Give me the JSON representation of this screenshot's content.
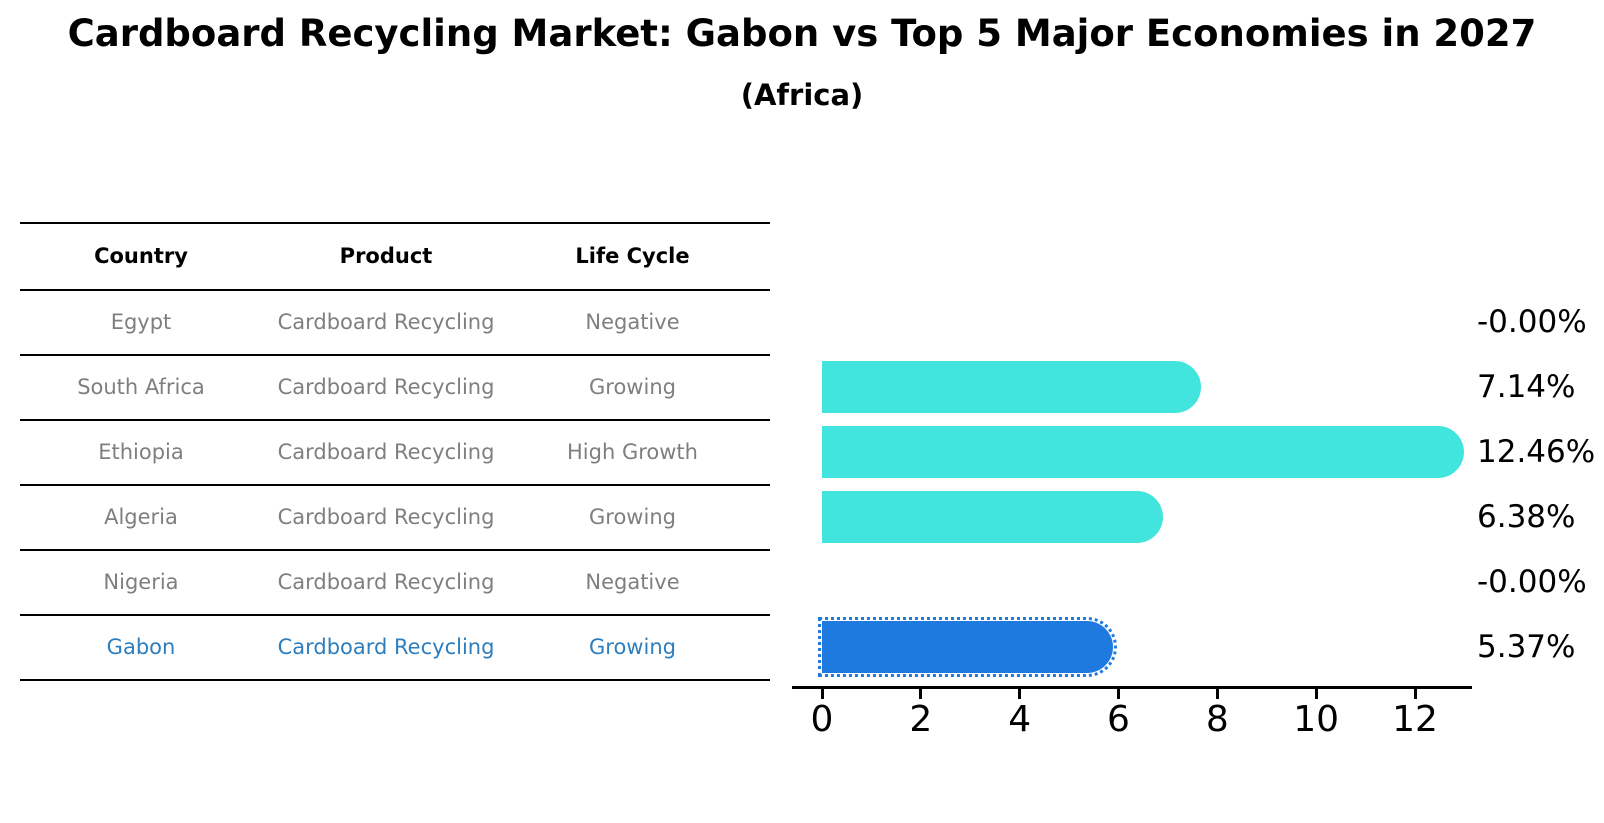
{
  "title": "Cardboard Recycling Market: Gabon vs Top 5 Major Economies in 2027",
  "subtitle": "(Africa)",
  "table": {
    "headers": [
      "Country",
      "Product",
      "Life Cycle"
    ],
    "rows": [
      {
        "country": "Egypt",
        "product": "Cardboard Recycling",
        "life_cycle": "Negative"
      },
      {
        "country": "South Africa",
        "product": "Cardboard Recycling",
        "life_cycle": "Growing"
      },
      {
        "country": "Ethiopia",
        "product": "Cardboard Recycling",
        "life_cycle": "High Growth"
      },
      {
        "country": "Algeria",
        "product": "Cardboard Recycling",
        "life_cycle": "Growing"
      },
      {
        "country": "Nigeria",
        "product": "Cardboard Recycling",
        "life_cycle": "Negative"
      },
      {
        "country": "Gabon",
        "product": "Cardboard Recycling",
        "life_cycle": "Growing"
      }
    ],
    "highlight_row": "Gabon"
  },
  "chart_data": {
    "type": "bar",
    "orientation": "horizontal",
    "categories": [
      "Egypt",
      "South Africa",
      "Ethiopia",
      "Algeria",
      "Nigeria",
      "Gabon"
    ],
    "values": [
      -0.0,
      7.14,
      12.46,
      6.38,
      -0.0,
      5.37
    ],
    "value_labels": [
      "-0.00%",
      "7.14%",
      "12.46%",
      "6.38%",
      "-0.00%",
      "5.37%"
    ],
    "xticks": [
      0,
      2,
      4,
      6,
      8,
      10,
      12
    ],
    "xlim": [
      0,
      13.2
    ],
    "grid": false,
    "legend": "none",
    "bar_color": "#42e4de",
    "highlight_color": "#1f7ae0",
    "highlight_text_color": "#2e7ebd",
    "highlight_index": 5,
    "highlight_edge_style": "dotted"
  }
}
